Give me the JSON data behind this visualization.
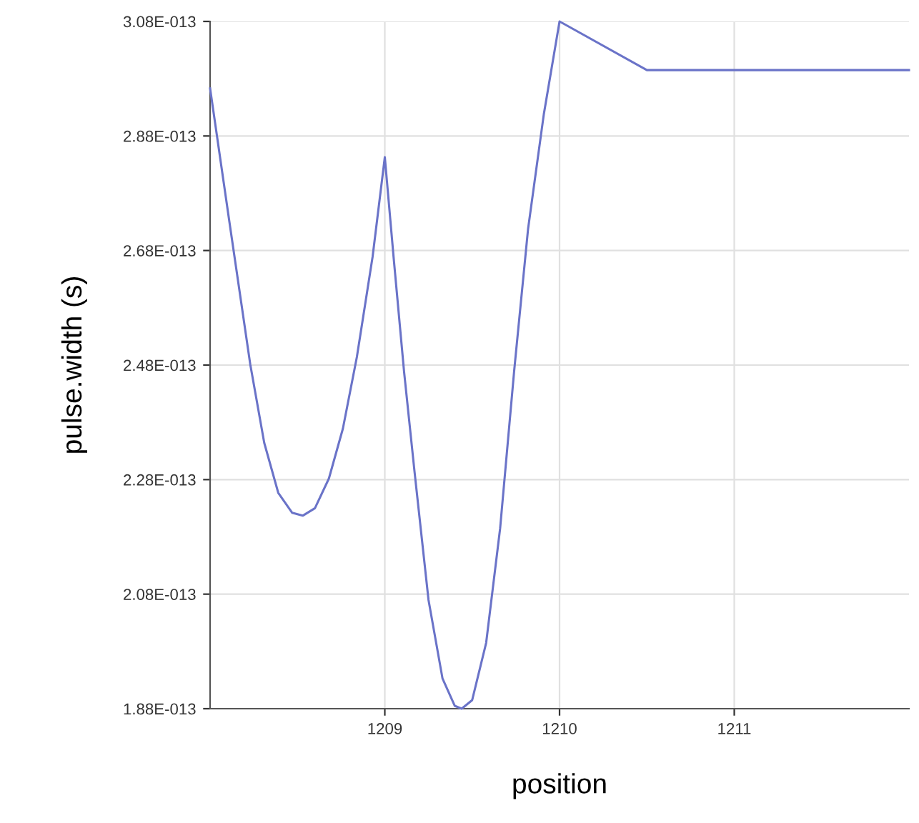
{
  "chart_data": {
    "type": "line",
    "xlabel": "position",
    "ylabel": "pulse.width (s)",
    "x": [
      1208.0,
      1208.11,
      1208.23,
      1208.31,
      1208.39,
      1208.47,
      1208.53,
      1208.6,
      1208.68,
      1208.76,
      1208.84,
      1208.93,
      1209.0,
      1209.05,
      1209.11,
      1209.17,
      1209.25,
      1209.33,
      1209.4,
      1209.44,
      1209.5,
      1209.58,
      1209.66,
      1209.74,
      1209.82,
      1209.91,
      1210.0,
      1210.5,
      1212.0
    ],
    "series": [
      {
        "color": "#6a73c8",
        "values": [
          2.963e-13,
          2.731e-13,
          2.481e-13,
          2.344e-13,
          2.257e-13,
          2.222e-13,
          2.217e-13,
          2.23e-13,
          2.282e-13,
          2.369e-13,
          2.494e-13,
          2.669e-13,
          2.843e-13,
          2.669e-13,
          2.469e-13,
          2.294e-13,
          2.07e-13,
          1.933e-13,
          1.885e-13,
          1.88e-13,
          1.895e-13,
          1.995e-13,
          2.195e-13,
          2.469e-13,
          2.718e-13,
          2.918e-13,
          3.08e-13,
          2.995e-13,
          2.995e-13
        ]
      }
    ],
    "xlim": [
      1208,
      1212
    ],
    "xticks": [
      1209,
      1210,
      1211
    ],
    "ylim": [
      1.88e-13,
      3.08e-13
    ],
    "yticks": [
      {
        "value": 1.88e-13,
        "label": "1.88E-013"
      },
      {
        "value": 2.08e-13,
        "label": "2.08E-013"
      },
      {
        "value": 2.28e-13,
        "label": "2.28E-013"
      },
      {
        "value": 2.48e-13,
        "label": "2.48E-013"
      },
      {
        "value": 2.68e-13,
        "label": "2.68E-013"
      },
      {
        "value": 2.88e-13,
        "label": "2.88E-013"
      },
      {
        "value": 3.08e-13,
        "label": "3.08E-013"
      }
    ],
    "grid": true,
    "marker": "none",
    "line_style": "solid"
  }
}
